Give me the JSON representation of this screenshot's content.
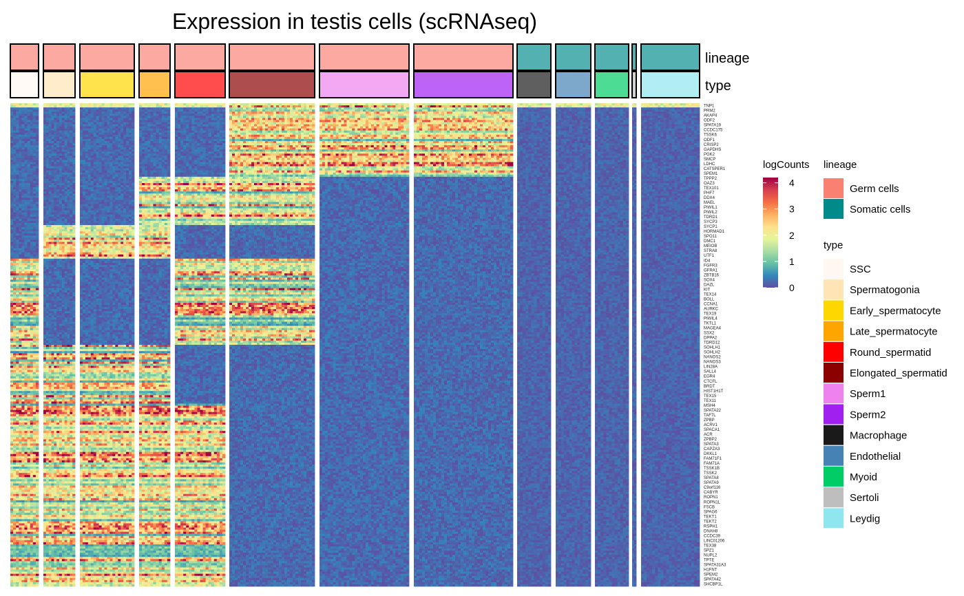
{
  "chart_data": {
    "type": "heatmap",
    "title": "Expression in testis cells (scRNAseq)",
    "annotation_rows": [
      "lineage",
      "type"
    ],
    "columns": [
      {
        "type": "SSC",
        "lineage": "Germ cells",
        "type_color": "#FFF8F0",
        "lineage_color": "#FA8072"
      },
      {
        "type": "Spermatogonia",
        "lineage": "Germ cells",
        "type_color": "#FFE4B5",
        "lineage_color": "#FA8072"
      },
      {
        "type": "Early_spermatocyte",
        "lineage": "Germ cells",
        "type_color": "#FFD700",
        "lineage_color": "#FA8072"
      },
      {
        "type": "Late_spermatocyte",
        "lineage": "Germ cells",
        "type_color": "#FFA500",
        "lineage_color": "#FA8072"
      },
      {
        "type": "Round_spermatid",
        "lineage": "Germ cells",
        "type_color": "#FF0000",
        "lineage_color": "#FA8072"
      },
      {
        "type": "Elongated_spermatid",
        "lineage": "Germ cells",
        "type_color": "#8B0000",
        "lineage_color": "#FA8072"
      },
      {
        "type": "Sperm1",
        "lineage": "Germ cells",
        "type_color": "#EE82EE",
        "lineage_color": "#FA8072"
      },
      {
        "type": "Sperm2",
        "lineage": "Germ cells",
        "type_color": "#A020F0",
        "lineage_color": "#FA8072"
      },
      {
        "type": "Macrophage",
        "lineage": "Somatic cells",
        "type_color": "#1A1A1A",
        "lineage_color": "#008B8B"
      },
      {
        "type": "Endothelial",
        "lineage": "Somatic cells",
        "type_color": "#4682B4",
        "lineage_color": "#008B8B"
      },
      {
        "type": "Myoid",
        "lineage": "Somatic cells",
        "type_color": "#00CD66",
        "lineage_color": "#008B8B"
      },
      {
        "type": "Sertoli",
        "lineage": "Somatic cells",
        "type_color": "#BEBEBE",
        "lineage_color": "#008B8B"
      },
      {
        "type": "Leydig",
        "lineage": "Somatic cells",
        "type_color": "#90E6EE",
        "lineage_color": "#008B8B"
      }
    ],
    "gene_labels": [
      "TNP1",
      "PRM2",
      "AKAP4",
      "ODF2",
      "SPATA19",
      "CCDC175",
      "TSSK6",
      "ODF1",
      "CRISP2",
      "GAPDHS",
      "PGK2",
      "SMCP",
      "LDHC",
      "CATSPER1",
      "SPEM1",
      "TPPP2",
      "OAZ3",
      "TEX101",
      "PHF7",
      "DDX4",
      "MAEL",
      "PIWIL1",
      "PIWIL2",
      "TDRD1",
      "SYCP3",
      "SYCP1",
      "HORMAD1",
      "SPO11",
      "DMC1",
      "MEIOB",
      "STRA8",
      "UTF1",
      "ID4",
      "FGFR3",
      "GFRA1",
      "ZBTB16",
      "SOX4",
      "DAZL",
      "KIT",
      "TEX14",
      "BOLL",
      "CCNA1",
      "AURKC",
      "TEX19",
      "PIWIL4",
      "TKTL1",
      "MAGEA4",
      "SSX2",
      "DPPA2",
      "TDRD12",
      "SOHLH1",
      "SOHLH2",
      "NANOS2",
      "NANOS3",
      "LIN28A",
      "SALL4",
      "EGR4",
      "CTCFL",
      "BRDT",
      "HIST1H1T",
      "TEX15",
      "TEX11",
      "MSH4",
      "SPATA22",
      "TAF7L",
      "ZPBP",
      "ACRV1",
      "SPACA1",
      "ACR",
      "ZPBP2",
      "SPATA3",
      "CAPZA3",
      "DKKL1",
      "FAM71F1",
      "FAM71A",
      "TSSK1B",
      "TSSK2",
      "SPATA8",
      "SPATA9",
      "C9orf116",
      "CABYR",
      "ROPN1",
      "ROPN1L",
      "FSCB",
      "SPAG6",
      "TEKT1",
      "TEKT2",
      "RSPH1",
      "DNAH8",
      "CCDC39",
      "LINC01206",
      "TEX38",
      "SPZ1",
      "NUPL2",
      "TPTE",
      "SPATA31A3",
      "H1FNT",
      "SPEM2",
      "SPATA42",
      "SHCBP1L"
    ],
    "gene_labels_note_shown": [
      "GOLGA6L2",
      "SLC25A31",
      "TSPY26P",
      "CT45A3",
      "LINC00467",
      "MAGEB2",
      "LINC01016",
      "CT47A11",
      "PRAMEF12",
      "ZNF689-AS1",
      "ADAM20",
      "ADAM21",
      "DEFB119",
      "TEX33",
      "CCT6B",
      "NDUFA4L2",
      "OR7E11P",
      "SPANXB1",
      "SPANXA2",
      "XAGE1A"
    ],
    "rows": 230,
    "color_scale": {
      "name": "logCounts",
      "ticks": [
        "0",
        "1",
        "2",
        "3",
        "4"
      ],
      "min": 0,
      "max": 4.2,
      "colors": [
        "#5E4FA2",
        "#3288BD",
        "#66C2A5",
        "#ABDDA4",
        "#E6F598",
        "#FEE08B",
        "#FDAE61",
        "#F46D43",
        "#D53E4F",
        "#9E0142"
      ]
    },
    "legend": {
      "lineage": {
        "title": "lineage",
        "items": [
          {
            "label": "Germ cells",
            "color": "#FA8072"
          },
          {
            "label": "Somatic cells",
            "color": "#008B8B"
          }
        ]
      },
      "type": {
        "title": "type",
        "items": [
          {
            "label": "SSC",
            "color": "#FFF8F0"
          },
          {
            "label": "Spermatogonia",
            "color": "#FFE4B5"
          },
          {
            "label": "Early_spermatocyte",
            "color": "#FFD700"
          },
          {
            "label": "Late_spermatocyte",
            "color": "#FFA500"
          },
          {
            "label": "Round_spermatid",
            "color": "#FF0000"
          },
          {
            "label": "Elongated_spermatid",
            "color": "#8B0000"
          },
          {
            "label": "Sperm1",
            "color": "#EE82EE"
          },
          {
            "label": "Sperm2",
            "color": "#A020F0"
          },
          {
            "label": "Macrophage",
            "color": "#1A1A1A"
          },
          {
            "label": "Endothelial",
            "color": "#4682B4"
          },
          {
            "label": "Myoid",
            "color": "#00CD66"
          },
          {
            "label": "Sertoli",
            "color": "#BEBEBE"
          },
          {
            "label": "Leydig",
            "color": "#90E6EE"
          }
        ]
      }
    }
  }
}
